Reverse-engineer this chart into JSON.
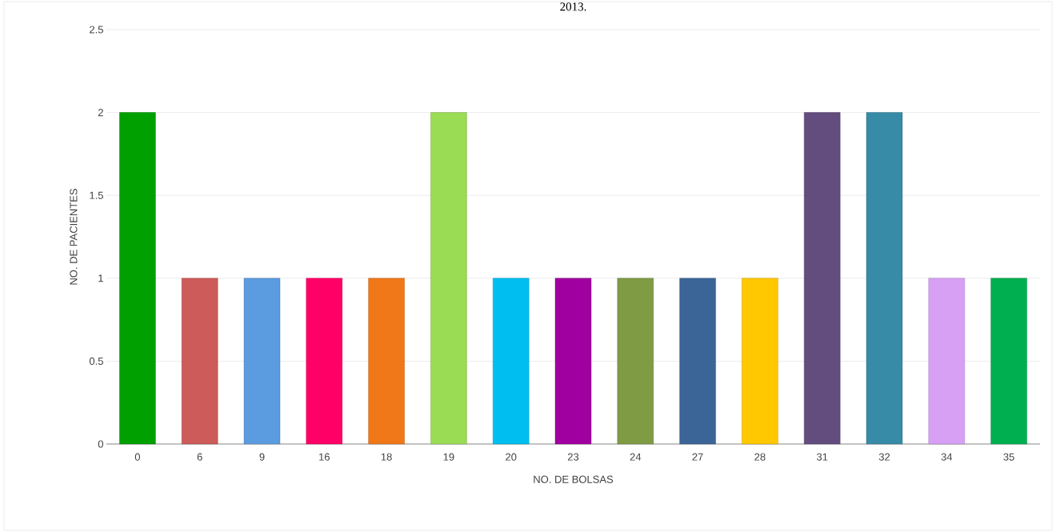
{
  "chart_data": {
    "type": "bar",
    "title": "2013.",
    "categories": [
      "0",
      "6",
      "9",
      "16",
      "18",
      "19",
      "20",
      "23",
      "24",
      "27",
      "28",
      "31",
      "32",
      "34",
      "35"
    ],
    "values": [
      2,
      1,
      1,
      1,
      1,
      2,
      1,
      1,
      1,
      1,
      1,
      2,
      2,
      1,
      1
    ],
    "colors": [
      "#00a000",
      "#cd5b59",
      "#5b9bdf",
      "#ff0066",
      "#f07818",
      "#9bdc55",
      "#00bff0",
      "#a000a0",
      "#7f9b44",
      "#3b6597",
      "#ffc800",
      "#634c7e",
      "#378ba7",
      "#d7a0f5",
      "#00b050"
    ],
    "xlabel": "NO. DE BOLSAS",
    "ylabel": "NO. DE PACIENTES",
    "ylim": [
      0,
      2.5
    ],
    "yticks": [
      0,
      0.5,
      1,
      1.5,
      2,
      2.5
    ],
    "grid": "y"
  }
}
